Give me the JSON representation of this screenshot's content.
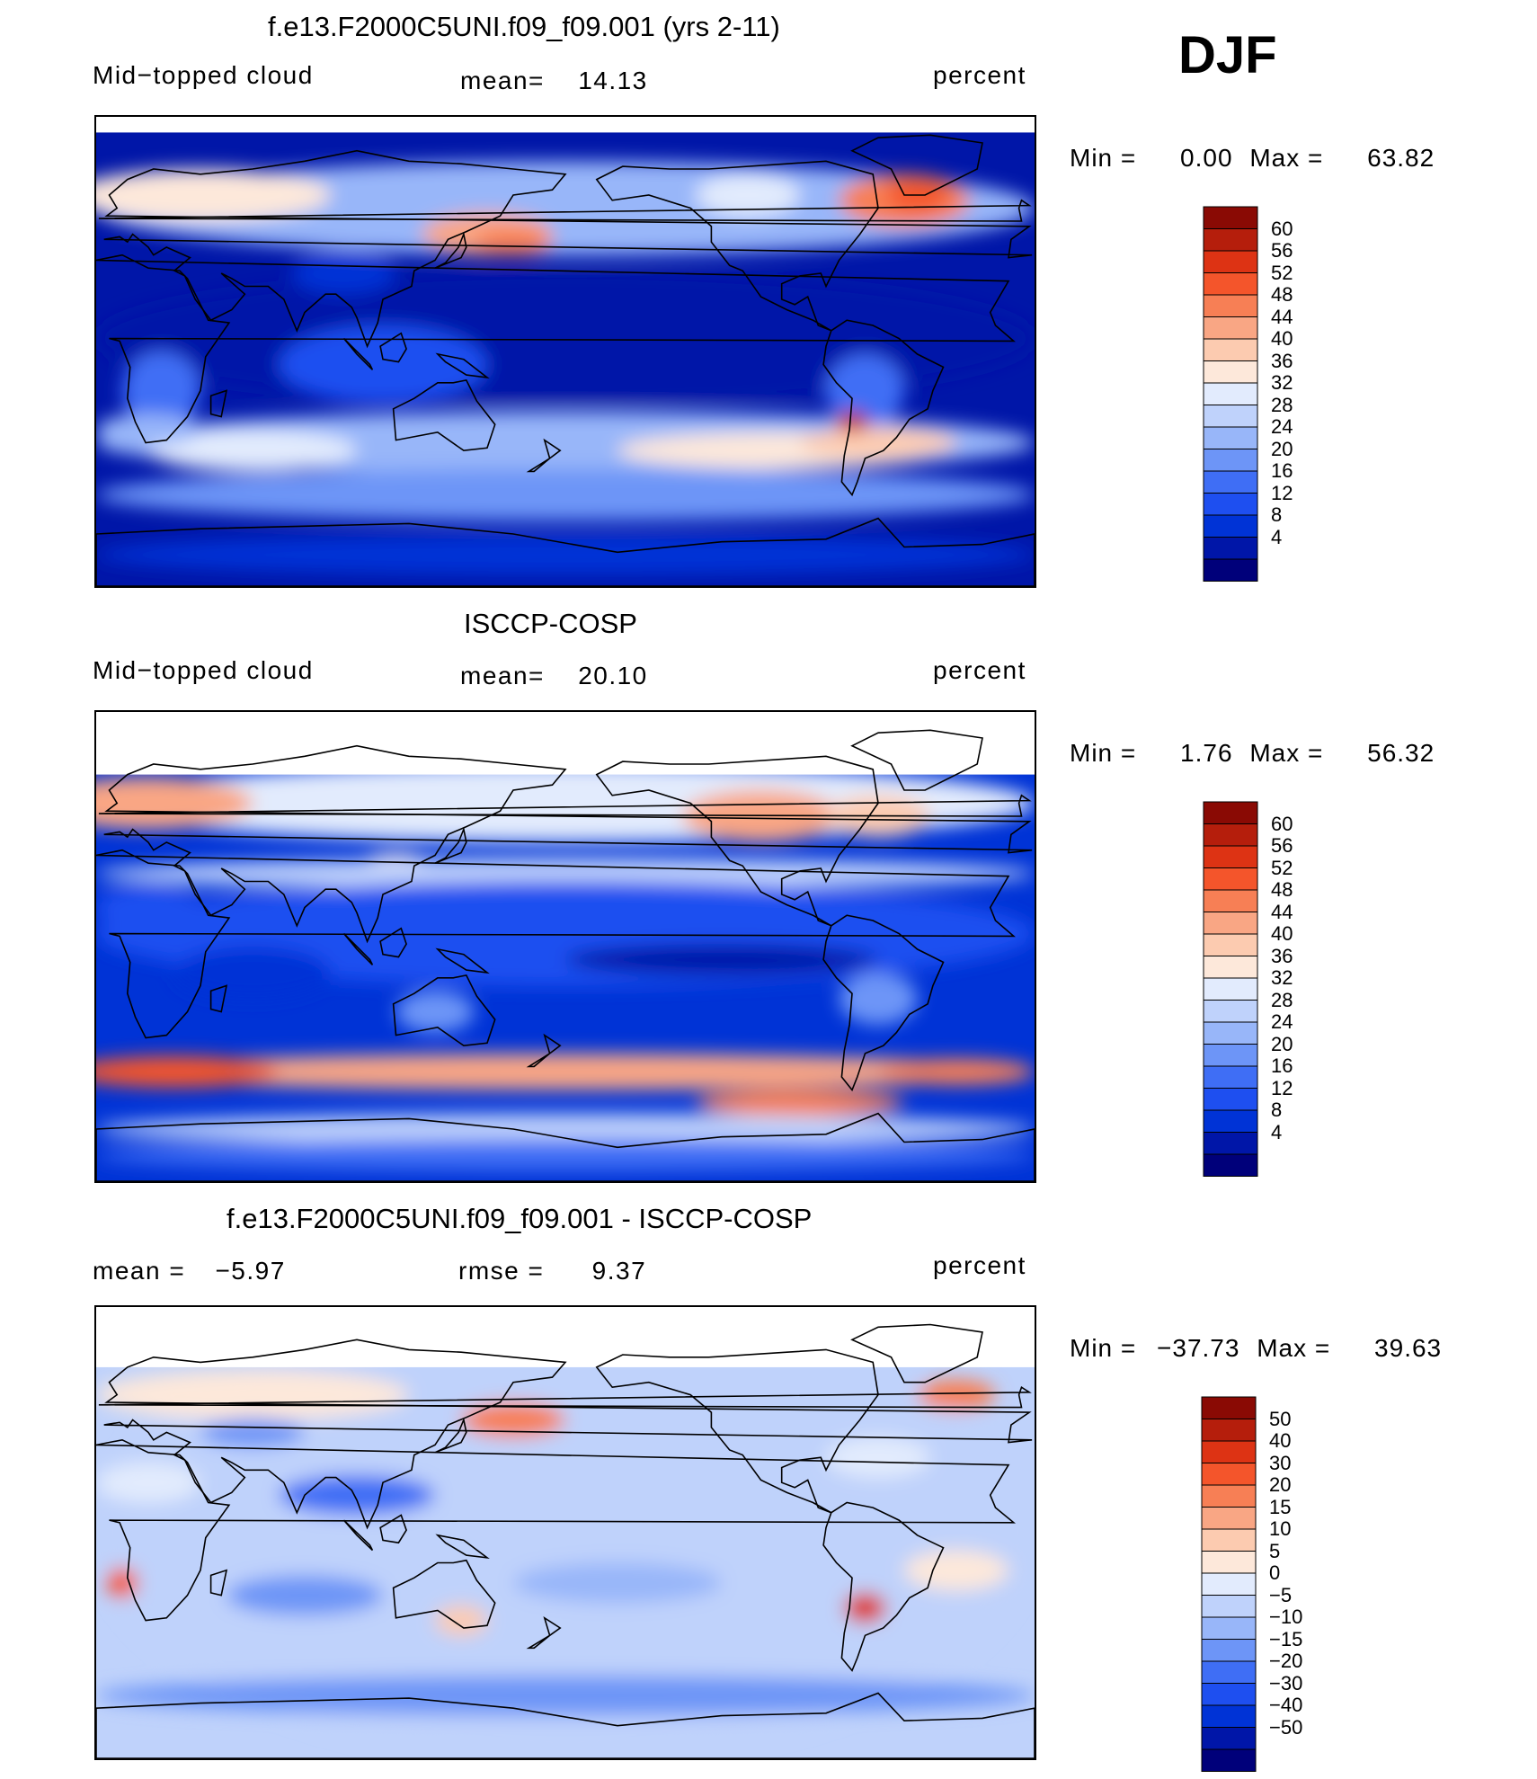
{
  "season": "DJF",
  "palettes": {
    "abs": [
      "#00007a",
      "#0016a8",
      "#0033d6",
      "#1e4ff0",
      "#3f6ef5",
      "#6d95f7",
      "#98b6f9",
      "#bfd2fb",
      "#e2ebfd",
      "#fde8da",
      "#fccbb0",
      "#f9a684",
      "#f77f55",
      "#f4552b",
      "#dd3314",
      "#b51e0c",
      "#8a0a04"
    ],
    "diff": [
      "#00007a",
      "#0016a8",
      "#0033d6",
      "#1e4ff0",
      "#3f6ef5",
      "#6d95f7",
      "#98b6f9",
      "#bfd2fb",
      "#e2ebfd",
      "#fde8da",
      "#fccbb0",
      "#f9a684",
      "#f77f55",
      "#f4552b",
      "#dd3314",
      "#b51e0c",
      "#8a0a04"
    ]
  },
  "panels": [
    {
      "title": "f.e13.F2000C5UNI.f09_f09.001 (yrs 2-11)",
      "left_label": "Mid−topped  cloud",
      "mean_label": "mean=",
      "mean_value": "14.13",
      "units": "percent",
      "min_label": "Min  =",
      "min_value": "0.00",
      "max_label": "Max  =",
      "max_value": "63.82",
      "colorbar_ticks": [
        "60",
        "56",
        "52",
        "48",
        "44",
        "40",
        "36",
        "32",
        "28",
        "24",
        "20",
        "16",
        "12",
        "8",
        "4"
      ]
    },
    {
      "title": "ISCCP-COSP",
      "left_label": "Mid−topped  cloud",
      "mean_label": "mean=",
      "mean_value": "20.10",
      "units": "percent",
      "min_label": "Min  =",
      "min_value": "1.76",
      "max_label": "Max  =",
      "max_value": "56.32",
      "colorbar_ticks": [
        "60",
        "56",
        "52",
        "48",
        "44",
        "40",
        "36",
        "32",
        "28",
        "24",
        "20",
        "16",
        "12",
        "8",
        "4"
      ]
    },
    {
      "title": "f.e13.F2000C5UNI.f09_f09.001 - ISCCP-COSP",
      "left_label": "mean  =",
      "left_value": "−5.97",
      "mean_label": "rmse  =",
      "mean_value": "9.37",
      "units": "percent",
      "min_label": "Min  =",
      "min_value": "−37.73",
      "max_label": "Max  =",
      "max_value": "39.63",
      "colorbar_ticks": [
        "50",
        "40",
        "30",
        "20",
        "15",
        "10",
        "5",
        "0",
        "−5",
        "−10",
        "−15",
        "−20",
        "−30",
        "−40",
        "−50"
      ]
    }
  ],
  "chart_data": [
    {
      "type": "heatmap",
      "title": "f.e13.F2000C5UNI.f09_f09.001 (yrs 2-11)",
      "variable": "Mid−topped  cloud",
      "units": "percent",
      "mean": 14.13,
      "min": 0.0,
      "max": 63.82,
      "levels": [
        4,
        8,
        12,
        16,
        20,
        24,
        28,
        32,
        36,
        40,
        44,
        48,
        52,
        56,
        60
      ]
    },
    {
      "type": "heatmap",
      "title": "ISCCP-COSP",
      "variable": "Mid−topped  cloud",
      "units": "percent",
      "mean": 20.1,
      "min": 1.76,
      "max": 56.32,
      "levels": [
        4,
        8,
        12,
        16,
        20,
        24,
        28,
        32,
        36,
        40,
        44,
        48,
        52,
        56,
        60
      ]
    },
    {
      "type": "heatmap",
      "title": "f.e13.F2000C5UNI.f09_f09.001 - ISCCP-COSP",
      "units": "percent",
      "mean": -5.97,
      "rmse": 9.37,
      "min": -37.73,
      "max": 39.63,
      "levels": [
        -50,
        -40,
        -30,
        -20,
        -15,
        -10,
        -5,
        0,
        5,
        10,
        15,
        20,
        30,
        40,
        50
      ]
    }
  ]
}
